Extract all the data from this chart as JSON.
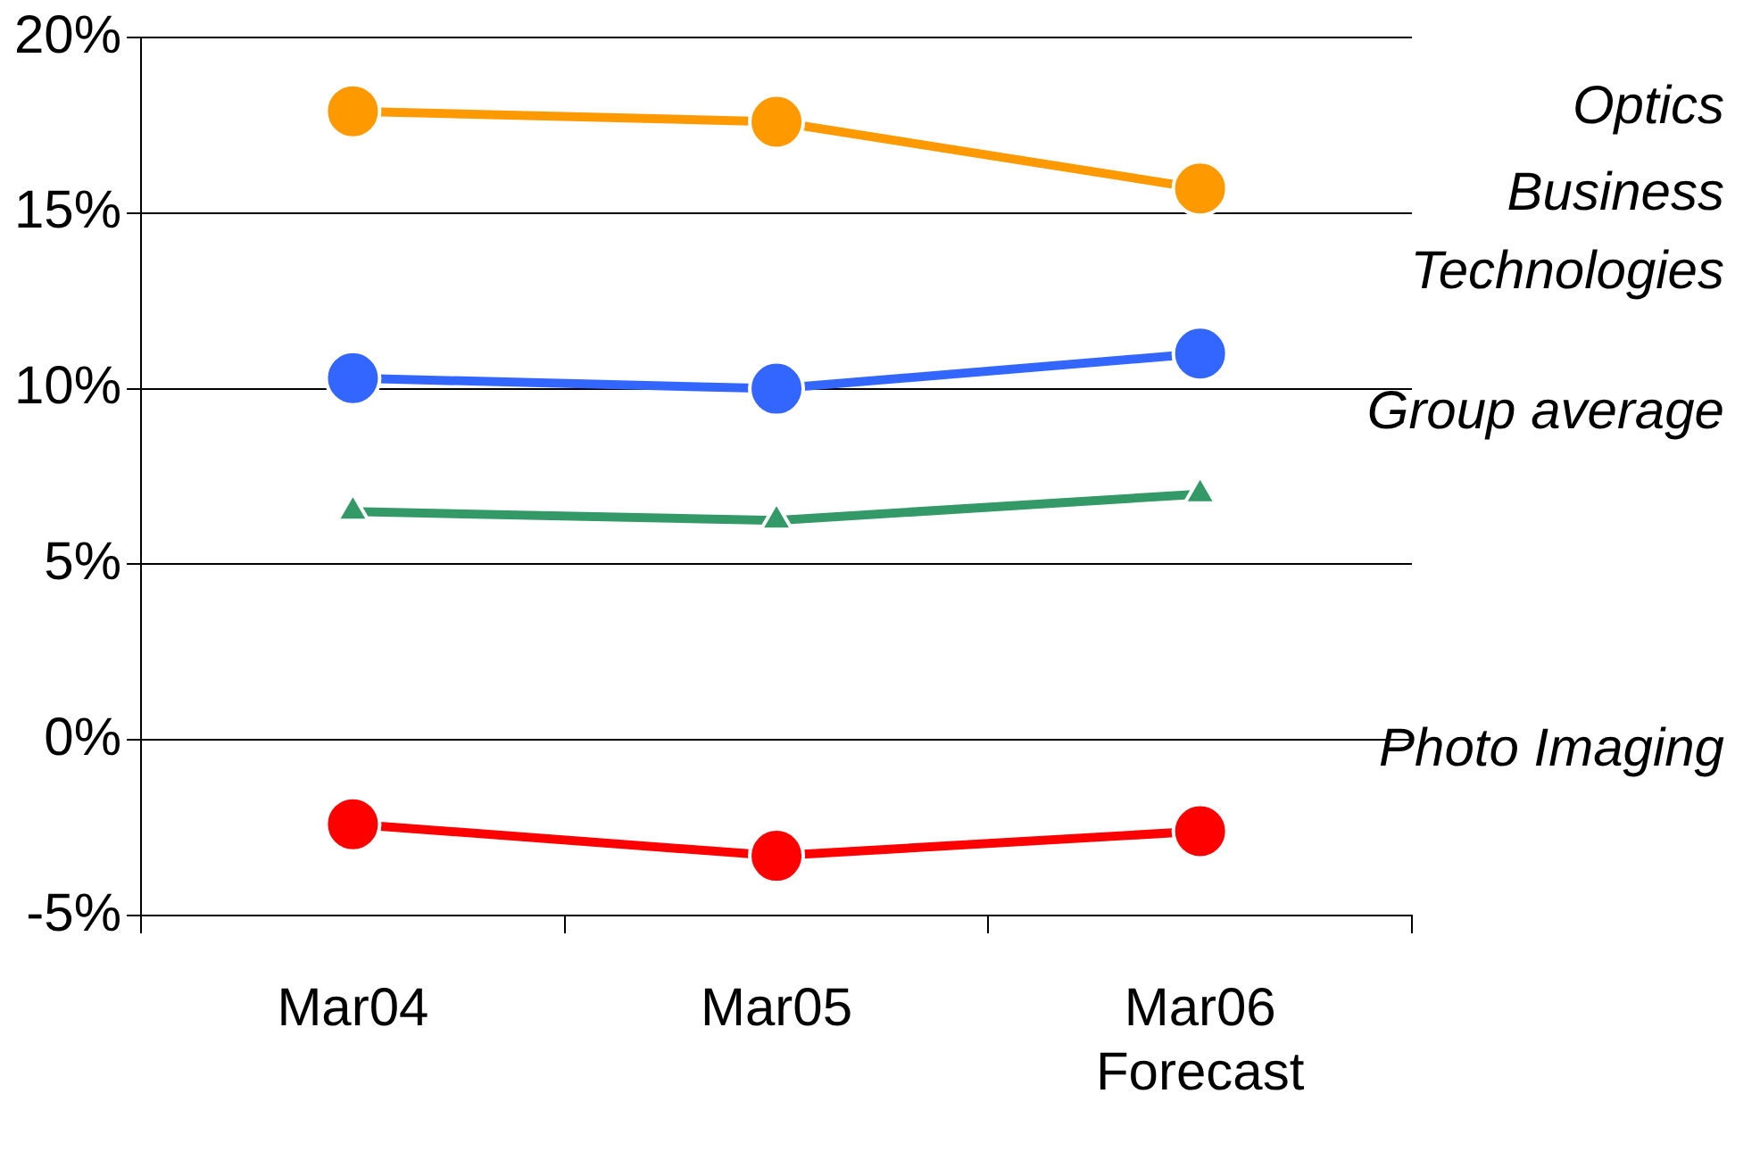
{
  "chart_data": {
    "type": "line",
    "categories": [
      "Mar04",
      "Mar05",
      "Mar06\nForecast"
    ],
    "series": [
      {
        "name": "Optics",
        "color": "#ff9900",
        "marker": "circle",
        "values": [
          17.9,
          17.6,
          15.7
        ]
      },
      {
        "name": "Business Technologies",
        "color": "#3366ff",
        "marker": "circle",
        "values": [
          10.3,
          10.0,
          11.0
        ]
      },
      {
        "name": "Group average",
        "color": "#339966",
        "marker": "triangle",
        "values": [
          6.5,
          6.25,
          7.0
        ]
      },
      {
        "name": "Photo Imaging",
        "color": "#ff0000",
        "marker": "circle",
        "values": [
          -2.4,
          -3.3,
          -2.6
        ]
      }
    ],
    "ylim": [
      -5,
      20
    ],
    "yticks": [
      {
        "value": -5,
        "label": "-5%"
      },
      {
        "value": 0,
        "label": "0%"
      },
      {
        "value": 5,
        "label": "5%"
      },
      {
        "value": 10,
        "label": "10%"
      },
      {
        "value": 15,
        "label": "15%"
      },
      {
        "value": 20,
        "label": "20%"
      }
    ],
    "grid": "y",
    "legend": false
  }
}
